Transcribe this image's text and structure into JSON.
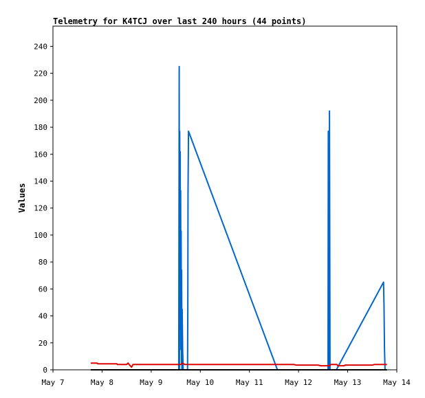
{
  "chart_data": {
    "type": "line",
    "title": "Telemetry for K4TCJ over last 240 hours (44 points)",
    "xlabel": "",
    "ylabel": "Values",
    "xlim": [
      "May 7",
      "May 14"
    ],
    "ylim": [
      0,
      255
    ],
    "x_ticks": [
      "May 7",
      "May 8",
      "May 9",
      "May 10",
      "May 11",
      "May 12",
      "May 13",
      "May 14"
    ],
    "y_ticks": [
      0,
      20,
      40,
      60,
      80,
      100,
      120,
      140,
      160,
      180,
      200,
      220,
      240
    ],
    "grid": false,
    "legend": "none",
    "series": [
      {
        "color": "#0066cc",
        "points": [
          [
            2.56,
            0
          ],
          [
            2.57,
            225
          ],
          [
            2.575,
            0
          ],
          [
            2.58,
            177
          ],
          [
            2.585,
            60
          ],
          [
            2.59,
            162
          ],
          [
            2.595,
            30
          ],
          [
            2.6,
            133
          ],
          [
            2.605,
            15
          ],
          [
            2.61,
            103
          ],
          [
            2.615,
            5
          ],
          [
            2.62,
            74
          ],
          [
            2.625,
            0
          ],
          [
            2.63,
            45
          ],
          [
            2.64,
            15
          ],
          [
            2.65,
            0
          ],
          [
            2.74,
            0
          ],
          [
            2.745,
            45
          ],
          [
            2.75,
            130
          ],
          [
            2.76,
            177
          ],
          [
            4.57,
            0
          ],
          [
            5.6,
            0
          ],
          [
            5.605,
            177
          ],
          [
            5.61,
            0
          ],
          [
            5.62,
            97
          ],
          [
            5.625,
            0
          ],
          [
            5.63,
            192
          ],
          [
            5.64,
            0
          ],
          [
            5.77,
            0
          ],
          [
            6.73,
            65
          ],
          [
            6.74,
            48
          ],
          [
            6.75,
            16
          ],
          [
            6.76,
            0
          ]
        ]
      },
      {
        "color": "#dd0000",
        "points": [
          [
            0.77,
            5
          ],
          [
            0.9,
            5
          ],
          [
            0.91,
            4.5
          ],
          [
            1.3,
            4.5
          ],
          [
            1.31,
            4
          ],
          [
            1.5,
            4
          ],
          [
            1.53,
            5
          ],
          [
            1.56,
            3.5
          ],
          [
            1.6,
            2
          ],
          [
            1.63,
            4
          ],
          [
            2.6,
            4
          ],
          [
            2.64,
            5
          ],
          [
            2.68,
            4
          ],
          [
            4.9,
            4
          ],
          [
            4.95,
            3.5
          ],
          [
            5.4,
            3.5
          ],
          [
            5.45,
            3
          ],
          [
            5.63,
            3
          ],
          [
            5.65,
            4
          ],
          [
            5.78,
            4
          ],
          [
            5.8,
            3
          ],
          [
            5.93,
            3
          ],
          [
            5.95,
            3.5
          ],
          [
            6.5,
            3.5
          ],
          [
            6.55,
            4
          ],
          [
            6.8,
            4
          ]
        ]
      },
      {
        "color": "#000000",
        "points": [
          [
            0.77,
            0
          ],
          [
            6.8,
            0
          ]
        ]
      }
    ]
  }
}
